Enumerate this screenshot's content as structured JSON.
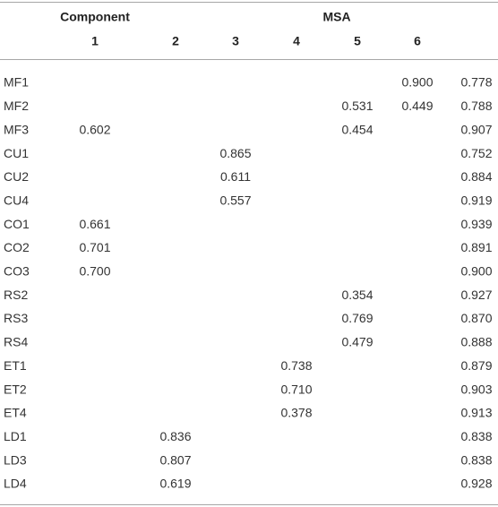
{
  "table": {
    "header": {
      "group_labels": [
        "Component",
        "MSA"
      ],
      "columns": [
        "1",
        "2",
        "3",
        "4",
        "5",
        "6"
      ]
    },
    "rows": [
      {
        "label": "MF1",
        "values": [
          null,
          null,
          null,
          null,
          null,
          "0.900",
          "0.778"
        ]
      },
      {
        "label": "MF2",
        "values": [
          null,
          null,
          null,
          null,
          "0.531",
          "0.449",
          "0.788"
        ]
      },
      {
        "label": "MF3",
        "values": [
          "0.602",
          null,
          null,
          null,
          "0.454",
          null,
          "0.907"
        ]
      },
      {
        "label": "CU1",
        "values": [
          null,
          null,
          "0.865",
          null,
          null,
          null,
          "0.752"
        ]
      },
      {
        "label": "CU2",
        "values": [
          null,
          null,
          "0.611",
          null,
          null,
          null,
          "0.884"
        ]
      },
      {
        "label": "CU4",
        "values": [
          null,
          null,
          "0.557",
          null,
          null,
          null,
          "0.919"
        ]
      },
      {
        "label": "CO1",
        "values": [
          "0.661",
          null,
          null,
          null,
          null,
          null,
          "0.939"
        ]
      },
      {
        "label": "CO2",
        "values": [
          "0.701",
          null,
          null,
          null,
          null,
          null,
          "0.891"
        ]
      },
      {
        "label": "CO3",
        "values": [
          "0.700",
          null,
          null,
          null,
          null,
          null,
          "0.900"
        ]
      },
      {
        "label": "RS2",
        "values": [
          null,
          null,
          null,
          null,
          "0.354",
          null,
          "0.927"
        ]
      },
      {
        "label": "RS3",
        "values": [
          null,
          null,
          null,
          null,
          "0.769",
          null,
          "0.870"
        ]
      },
      {
        "label": "RS4",
        "values": [
          null,
          null,
          null,
          null,
          "0.479",
          null,
          "0.888"
        ]
      },
      {
        "label": "ET1",
        "values": [
          null,
          null,
          null,
          "0.738",
          null,
          null,
          "0.879"
        ]
      },
      {
        "label": "ET2",
        "values": [
          null,
          null,
          null,
          "0.710",
          null,
          null,
          "0.903"
        ]
      },
      {
        "label": "ET4",
        "values": [
          null,
          null,
          null,
          "0.378",
          null,
          null,
          "0.913"
        ]
      },
      {
        "label": "LD1",
        "values": [
          null,
          "0.836",
          null,
          null,
          null,
          null,
          "0.838"
        ]
      },
      {
        "label": "LD3",
        "values": [
          null,
          "0.807",
          null,
          null,
          null,
          null,
          "0.838"
        ]
      },
      {
        "label": "LD4",
        "values": [
          null,
          "0.619",
          null,
          null,
          null,
          null,
          "0.928"
        ]
      }
    ]
  }
}
